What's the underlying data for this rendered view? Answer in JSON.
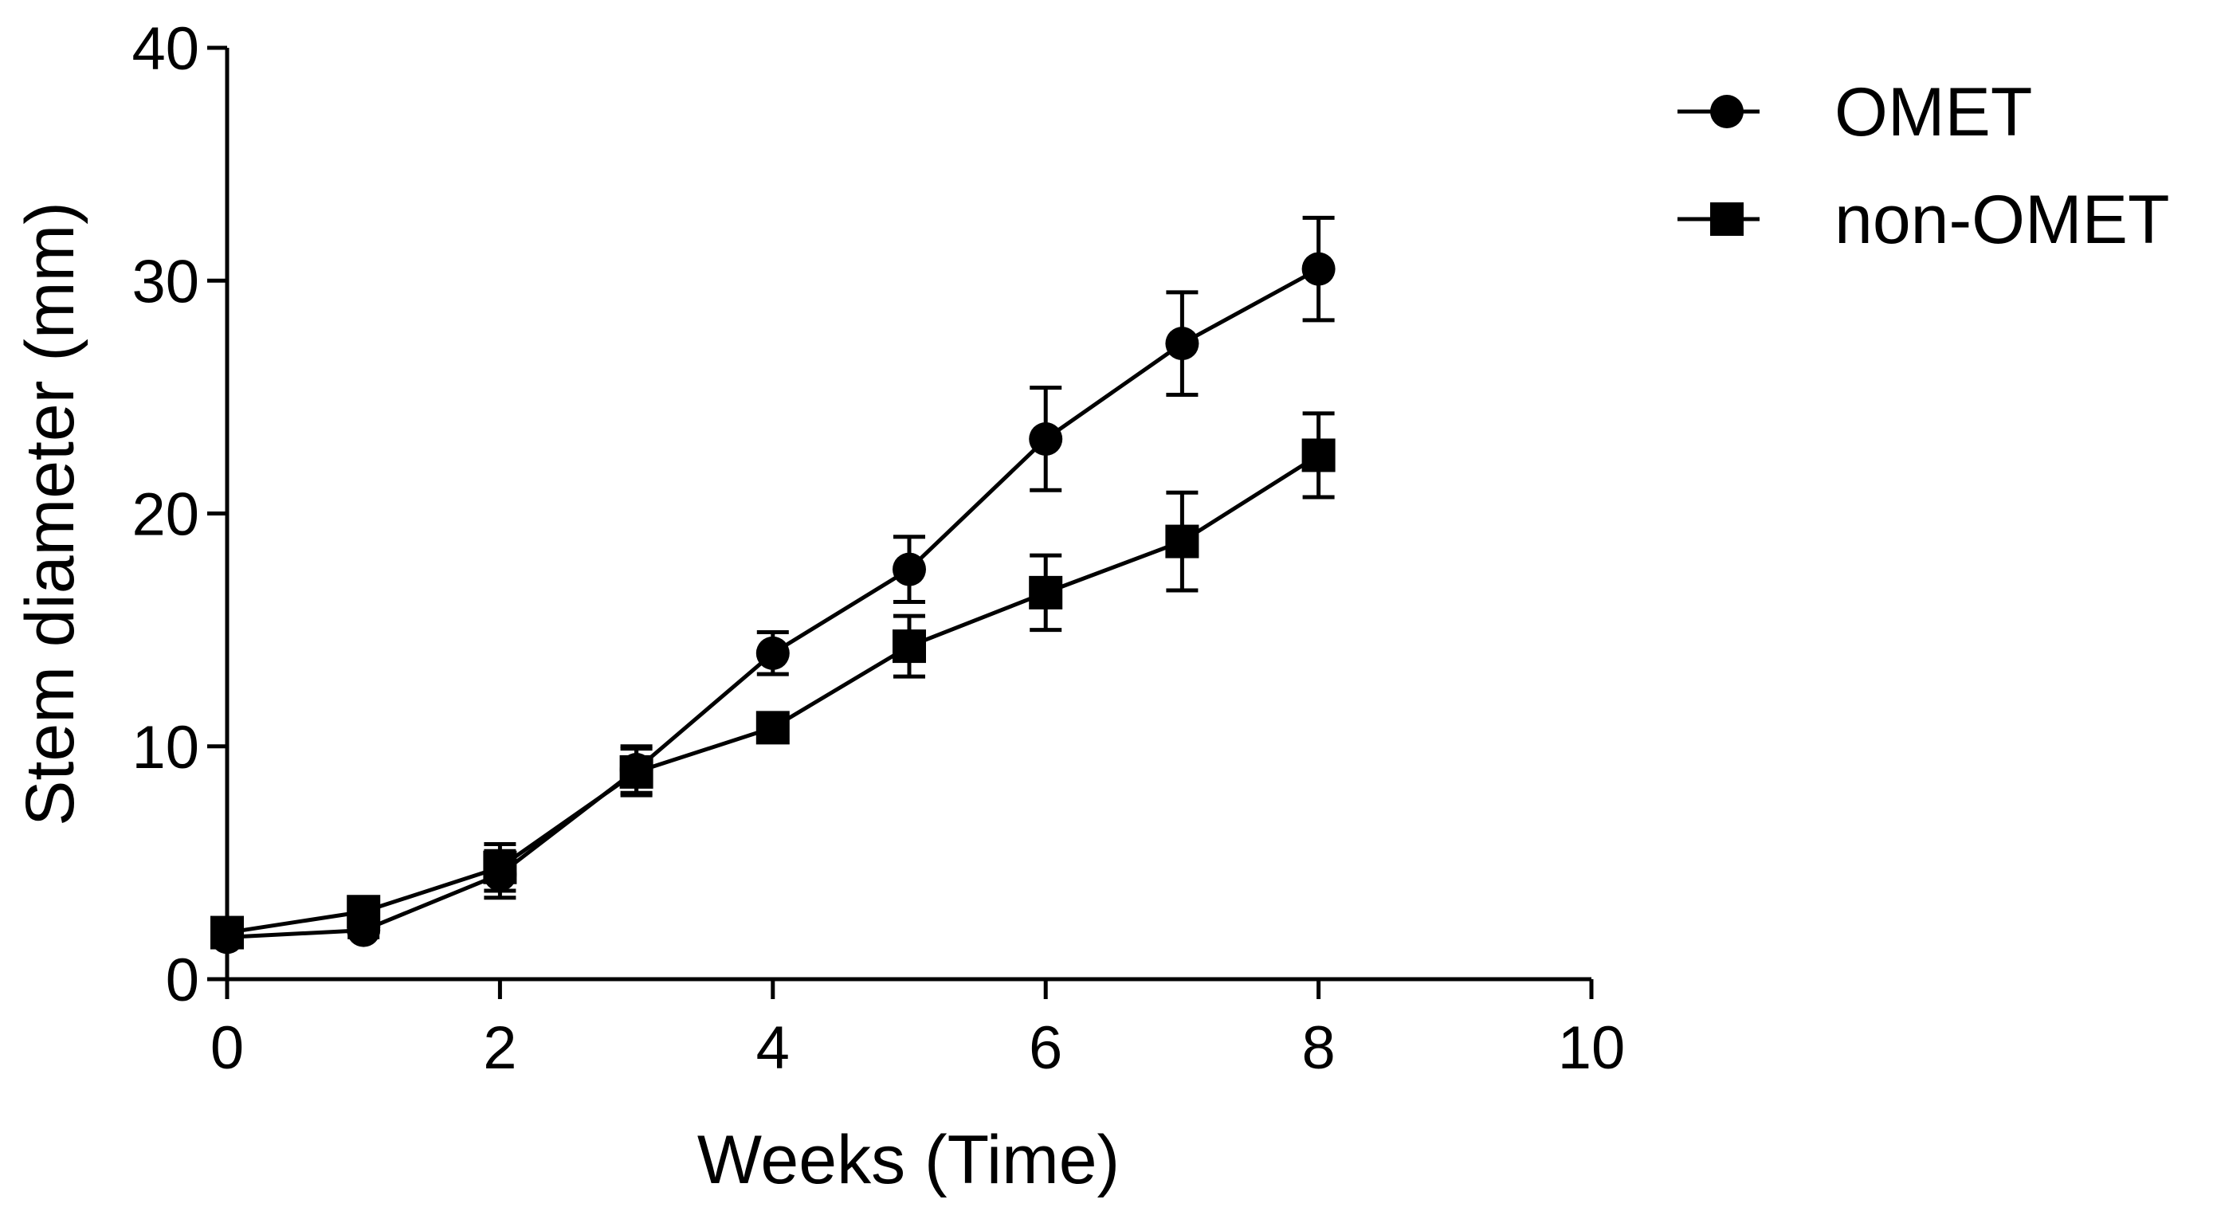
{
  "chart_data": {
    "type": "line",
    "title": "",
    "xlabel": "Weeks (Time)",
    "ylabel": "Stem diameter (mm)",
    "xlim": [
      0,
      10
    ],
    "ylim": [
      0,
      40
    ],
    "xticks": [
      0,
      2,
      4,
      6,
      8,
      10
    ],
    "yticks": [
      0,
      10,
      20,
      30,
      40
    ],
    "xtick_labels": [
      "0",
      "2",
      "4",
      "6",
      "8",
      "10"
    ],
    "ytick_labels": [
      "0",
      "10",
      "20",
      "30",
      "40"
    ],
    "grid": false,
    "legend_position": "top-right",
    "x": [
      0,
      1,
      2,
      3,
      4,
      5,
      6,
      7,
      8
    ],
    "series": [
      {
        "name": "OMET",
        "marker": "circle",
        "values": [
          1.8,
          2.1,
          4.5,
          9.0,
          14.0,
          17.6,
          23.2,
          27.3,
          30.5
        ],
        "errors": [
          0.3,
          0.3,
          1.0,
          1.0,
          0.9,
          1.4,
          2.2,
          2.2,
          2.2
        ]
      },
      {
        "name": "non-OMET",
        "marker": "square",
        "values": [
          2.0,
          2.9,
          4.8,
          8.9,
          10.8,
          14.3,
          16.6,
          18.8,
          22.5
        ],
        "errors": [
          0.3,
          0.3,
          1.0,
          1.0,
          0.5,
          1.3,
          1.6,
          2.1,
          1.8
        ]
      }
    ]
  }
}
